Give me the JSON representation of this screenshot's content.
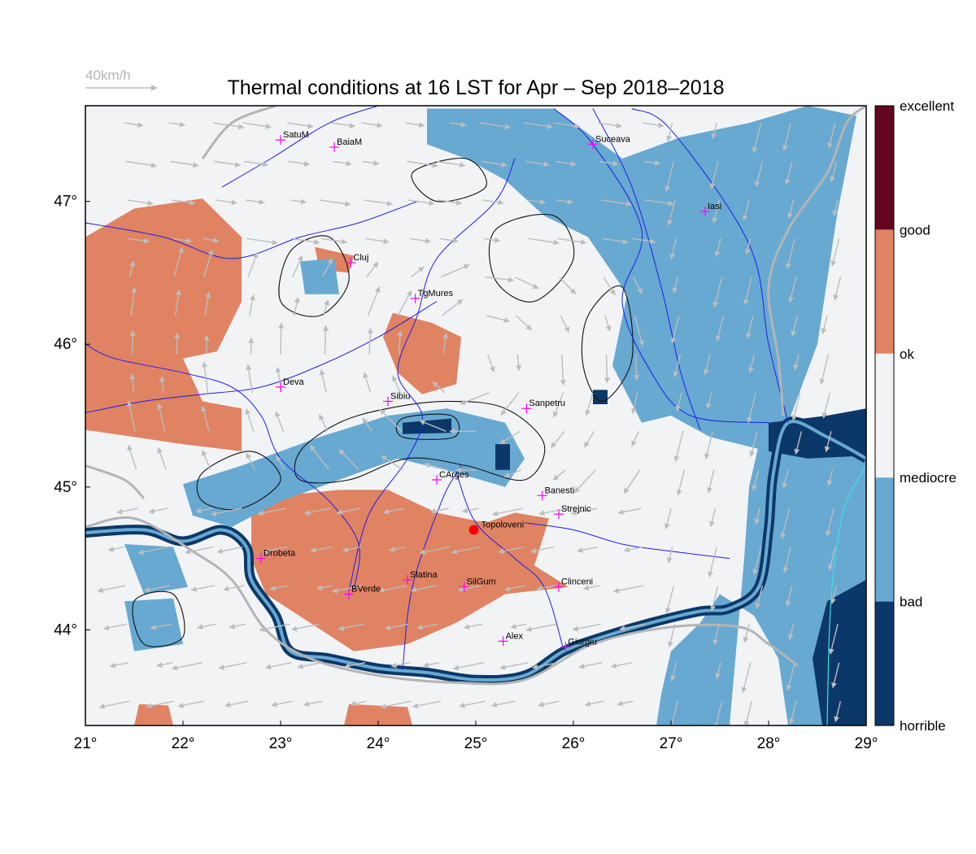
{
  "title": "Thermal conditions at 16 LST for Apr – Sep  2018–2018",
  "wind_scale": {
    "label": "40km/h",
    "speed_kmh": 40
  },
  "colors": {
    "background": "#f2f3f5",
    "horrible": "#0b3868",
    "bad": "#67a9d1",
    "mediocre": "#f2f3f5",
    "ok": "#f2f3f5",
    "good": "#e08363",
    "excellent": "#650621",
    "river": "#1e1ee6",
    "coast": "#40e0e0",
    "border": "#b4b4b4",
    "wind": "#bdbdbd",
    "marker": "#ff00ff",
    "highlight": "#ff0000"
  },
  "axes": {
    "lon": [
      21,
      29
    ],
    "lat": [
      43.33,
      47.67
    ],
    "x_ticks": [
      "21°",
      "22°",
      "23°",
      "24°",
      "25°",
      "26°",
      "27°",
      "28°",
      "29°"
    ],
    "y_ticks": [
      {
        "value": 44,
        "label": "44°"
      },
      {
        "value": 45,
        "label": "45°"
      },
      {
        "value": 46,
        "label": "46°"
      },
      {
        "value": 47,
        "label": "47°"
      }
    ]
  },
  "legend": {
    "labels": [
      "excellent",
      "good",
      "ok",
      "mediocre",
      "bad",
      "horrible"
    ],
    "bands": [
      {
        "from": 4,
        "to": 5,
        "color": "#650621"
      },
      {
        "from": 3,
        "to": 4,
        "color": "#e08363"
      },
      {
        "from": 2,
        "to": 3,
        "color": "#f2f3f5"
      },
      {
        "from": 1,
        "to": 2,
        "color": "#67a9d1"
      },
      {
        "from": 0,
        "to": 1,
        "color": "#0b3868"
      }
    ]
  },
  "cities": [
    {
      "name": "SatuM",
      "lon": 23.0,
      "lat": 47.43
    },
    {
      "name": "BaiaM",
      "lon": 23.55,
      "lat": 47.38
    },
    {
      "name": "Suceava",
      "lon": 26.2,
      "lat": 47.4
    },
    {
      "name": "Iasi",
      "lon": 27.35,
      "lat": 46.93
    },
    {
      "name": "Cluj",
      "lon": 23.72,
      "lat": 46.57
    },
    {
      "name": "TgMures",
      "lon": 24.38,
      "lat": 46.32
    },
    {
      "name": "Deva",
      "lon": 23.0,
      "lat": 45.7
    },
    {
      "name": "Sibiu",
      "lon": 24.1,
      "lat": 45.6
    },
    {
      "name": "Sanpetru",
      "lon": 25.52,
      "lat": 45.55
    },
    {
      "name": "CArges",
      "lon": 24.6,
      "lat": 45.05
    },
    {
      "name": "Banesti",
      "lon": 25.68,
      "lat": 44.94
    },
    {
      "name": "Strejnic",
      "lon": 25.85,
      "lat": 44.81
    },
    {
      "name": "Drobeta",
      "lon": 22.8,
      "lat": 44.5
    },
    {
      "name": "Slatina",
      "lon": 24.3,
      "lat": 44.35
    },
    {
      "name": "SilGum",
      "lon": 24.88,
      "lat": 44.3
    },
    {
      "name": "Clinceni",
      "lon": 25.85,
      "lat": 44.3
    },
    {
      "name": "BVerde",
      "lon": 23.7,
      "lat": 44.25
    },
    {
      "name": "Alex",
      "lon": 25.28,
      "lat": 43.92
    },
    {
      "name": "Giurgiu",
      "lon": 25.92,
      "lat": 43.88
    }
  ],
  "highlight": {
    "name": "Topoloveni",
    "lon": 24.98,
    "lat": 44.7
  },
  "regions": [
    {
      "cls": "good",
      "pts": [
        [
          21.0,
          46.75
        ],
        [
          21.5,
          46.95
        ],
        [
          22.2,
          47.02
        ],
        [
          22.6,
          46.75
        ],
        [
          22.6,
          46.3
        ],
        [
          22.35,
          45.95
        ],
        [
          22.0,
          45.9
        ],
        [
          22.2,
          45.6
        ],
        [
          22.6,
          45.55
        ],
        [
          22.6,
          45.25
        ],
        [
          22.0,
          45.3
        ],
        [
          21.5,
          45.35
        ],
        [
          21.0,
          45.4
        ]
      ]
    },
    {
      "cls": "good",
      "pts": [
        [
          23.35,
          46.68
        ],
        [
          23.75,
          46.62
        ],
        [
          23.7,
          46.5
        ],
        [
          23.4,
          46.52
        ]
      ]
    },
    {
      "cls": "good",
      "pts": [
        [
          24.15,
          46.22
        ],
        [
          24.55,
          46.15
        ],
        [
          24.85,
          46.05
        ],
        [
          24.8,
          45.72
        ],
        [
          24.45,
          45.65
        ],
        [
          24.2,
          45.8
        ],
        [
          24.05,
          46.05
        ]
      ]
    },
    {
      "cls": "good",
      "pts": [
        [
          22.7,
          44.85
        ],
        [
          23.15,
          44.95
        ],
        [
          23.6,
          44.98
        ],
        [
          24.1,
          44.98
        ],
        [
          24.6,
          44.82
        ],
        [
          25.1,
          44.75
        ],
        [
          25.4,
          44.82
        ],
        [
          25.75,
          44.78
        ],
        [
          25.6,
          44.45
        ],
        [
          25.95,
          44.3
        ],
        [
          25.3,
          44.25
        ],
        [
          24.8,
          44.05
        ],
        [
          24.3,
          43.9
        ],
        [
          23.75,
          43.85
        ],
        [
          23.3,
          44.05
        ],
        [
          22.85,
          44.25
        ],
        [
          22.7,
          44.5
        ]
      ]
    },
    {
      "cls": "good",
      "pts": [
        [
          21.55,
          43.48
        ],
        [
          21.85,
          43.47
        ],
        [
          21.9,
          43.33
        ],
        [
          21.5,
          43.33
        ]
      ]
    },
    {
      "cls": "good",
      "pts": [
        [
          23.7,
          43.48
        ],
        [
          24.3,
          43.46
        ],
        [
          24.35,
          43.33
        ],
        [
          23.65,
          43.33
        ]
      ]
    },
    {
      "cls": "good",
      "pts": [
        [
          27.98,
          44.75
        ],
        [
          28.1,
          44.72
        ],
        [
          28.08,
          44.6
        ],
        [
          27.95,
          44.62
        ]
      ]
    },
    {
      "cls": "bad",
      "pts": [
        [
          24.5,
          47.65
        ],
        [
          25.8,
          47.65
        ],
        [
          26.5,
          47.3
        ],
        [
          27.1,
          47.45
        ],
        [
          27.8,
          47.55
        ],
        [
          28.4,
          47.67
        ],
        [
          28.9,
          47.6
        ],
        [
          28.7,
          46.9
        ],
        [
          28.5,
          46.0
        ],
        [
          28.2,
          45.45
        ],
        [
          28.0,
          45.25
        ],
        [
          27.4,
          45.35
        ],
        [
          27.0,
          45.5
        ],
        [
          26.7,
          45.45
        ],
        [
          26.4,
          45.85
        ],
        [
          26.55,
          46.35
        ],
        [
          26.15,
          46.75
        ],
        [
          25.7,
          46.9
        ],
        [
          25.3,
          47.15
        ],
        [
          24.9,
          47.3
        ],
        [
          24.5,
          47.4
        ]
      ]
    },
    {
      "cls": "bad",
      "pts": [
        [
          22.0,
          45.02
        ],
        [
          22.6,
          45.15
        ],
        [
          23.4,
          45.35
        ],
        [
          24.1,
          45.5
        ],
        [
          24.7,
          45.55
        ],
        [
          25.3,
          45.45
        ],
        [
          25.5,
          45.2
        ],
        [
          25.3,
          45.0
        ],
        [
          24.8,
          45.1
        ],
        [
          24.2,
          45.2
        ],
        [
          23.6,
          45.05
        ],
        [
          23.0,
          44.9
        ],
        [
          22.5,
          44.72
        ],
        [
          22.1,
          44.8
        ]
      ]
    },
    {
      "cls": "bad",
      "pts": [
        [
          27.9,
          45.3
        ],
        [
          28.5,
          45.4
        ],
        [
          29.0,
          45.5
        ],
        [
          29.0,
          43.33
        ],
        [
          28.2,
          43.33
        ],
        [
          28.1,
          43.8
        ],
        [
          27.85,
          44.1
        ],
        [
          27.5,
          44.25
        ],
        [
          27.3,
          44.05
        ],
        [
          27.0,
          43.85
        ],
        [
          26.9,
          43.55
        ],
        [
          26.85,
          43.33
        ],
        [
          27.6,
          43.33
        ],
        [
          27.75,
          44.5
        ],
        [
          27.8,
          45.0
        ]
      ]
    },
    {
      "cls": "bad",
      "pts": [
        [
          21.4,
          44.6
        ],
        [
          21.9,
          44.58
        ],
        [
          22.05,
          44.3
        ],
        [
          21.6,
          44.25
        ]
      ]
    },
    {
      "cls": "bad",
      "pts": [
        [
          21.4,
          44.2
        ],
        [
          21.9,
          44.22
        ],
        [
          22.0,
          43.9
        ],
        [
          21.5,
          43.85
        ]
      ]
    },
    {
      "cls": "bad",
      "pts": [
        [
          23.2,
          46.58
        ],
        [
          23.55,
          46.6
        ],
        [
          23.6,
          46.35
        ],
        [
          23.25,
          46.35
        ]
      ]
    },
    {
      "cls": "horrible",
      "pts": [
        [
          28.55,
          43.33
        ],
        [
          29.0,
          43.33
        ],
        [
          29.0,
          44.35
        ],
        [
          28.6,
          44.2
        ],
        [
          28.45,
          43.8
        ]
      ]
    },
    {
      "cls": "horrible",
      "pts": [
        [
          28.0,
          45.45
        ],
        [
          28.6,
          45.5
        ],
        [
          29.0,
          45.55
        ],
        [
          29.0,
          45.22
        ],
        [
          28.4,
          45.2
        ],
        [
          28.0,
          45.25
        ]
      ]
    },
    {
      "cls": "horrible",
      "pts": [
        [
          24.25,
          45.45
        ],
        [
          24.75,
          45.48
        ],
        [
          24.75,
          45.38
        ],
        [
          24.25,
          45.37
        ]
      ]
    },
    {
      "cls": "horrible",
      "pts": [
        [
          25.2,
          45.3
        ],
        [
          25.35,
          45.3
        ],
        [
          25.35,
          45.12
        ],
        [
          25.2,
          45.12
        ]
      ]
    },
    {
      "cls": "horrible",
      "pts": [
        [
          26.2,
          45.68
        ],
        [
          26.35,
          45.68
        ],
        [
          26.35,
          45.58
        ],
        [
          26.2,
          45.58
        ]
      ]
    }
  ],
  "danube": [
    [
      21.0,
      44.68
    ],
    [
      21.6,
      44.7
    ],
    [
      22.0,
      44.62
    ],
    [
      22.4,
      44.7
    ],
    [
      22.65,
      44.58
    ],
    [
      22.7,
      44.35
    ],
    [
      22.95,
      44.1
    ],
    [
      23.1,
      43.85
    ],
    [
      23.5,
      43.8
    ],
    [
      24.0,
      43.73
    ],
    [
      24.5,
      43.7
    ],
    [
      25.0,
      43.65
    ],
    [
      25.5,
      43.68
    ],
    [
      25.9,
      43.85
    ],
    [
      26.3,
      43.95
    ],
    [
      26.8,
      44.05
    ],
    [
      27.3,
      44.13
    ],
    [
      27.6,
      44.15
    ],
    [
      27.9,
      44.3
    ],
    [
      28.0,
      44.7
    ],
    [
      28.05,
      45.1
    ],
    [
      28.2,
      45.45
    ],
    [
      28.6,
      45.35
    ],
    [
      29.0,
      45.2
    ]
  ],
  "rivers": [
    [
      [
        23.75,
        44.28
      ],
      [
        23.8,
        44.6
      ],
      [
        23.5,
        44.9
      ],
      [
        23.0,
        45.2
      ],
      [
        22.8,
        45.5
      ],
      [
        22.5,
        45.7
      ],
      [
        22.0,
        45.8
      ],
      [
        21.3,
        45.9
      ],
      [
        21.0,
        46.0
      ]
    ],
    [
      [
        23.7,
        44.27
      ],
      [
        23.9,
        44.8
      ],
      [
        24.3,
        45.2
      ],
      [
        24.45,
        45.5
      ],
      [
        24.2,
        45.8
      ],
      [
        24.4,
        46.2
      ],
      [
        24.6,
        46.6
      ],
      [
        25.2,
        47.0
      ],
      [
        25.4,
        47.3
      ]
    ],
    [
      [
        24.25,
        43.72
      ],
      [
        24.35,
        44.3
      ],
      [
        24.65,
        44.9
      ],
      [
        24.85,
        45.15
      ]
    ],
    [
      [
        25.9,
        43.86
      ],
      [
        25.7,
        44.3
      ],
      [
        25.4,
        44.5
      ],
      [
        25.0,
        44.75
      ],
      [
        24.8,
        45.1
      ]
    ],
    [
      [
        27.6,
        44.5
      ],
      [
        27.0,
        44.55
      ],
      [
        26.5,
        44.6
      ],
      [
        26.0,
        44.7
      ],
      [
        25.5,
        44.75
      ]
    ],
    [
      [
        28.0,
        45.45
      ],
      [
        27.2,
        45.5
      ],
      [
        26.8,
        45.8
      ],
      [
        26.5,
        46.3
      ],
      [
        26.7,
        46.8
      ],
      [
        26.2,
        47.4
      ],
      [
        25.8,
        47.65
      ]
    ],
    [
      [
        28.2,
        45.45
      ],
      [
        28.0,
        46.0
      ],
      [
        27.8,
        46.7
      ],
      [
        27.0,
        47.5
      ],
      [
        26.6,
        47.65
      ]
    ],
    [
      [
        22.4,
        47.1
      ],
      [
        22.9,
        47.3
      ],
      [
        23.5,
        47.55
      ],
      [
        24.0,
        47.67
      ]
    ],
    [
      [
        21.0,
        46.85
      ],
      [
        21.8,
        46.75
      ],
      [
        22.5,
        46.6
      ],
      [
        23.2,
        46.75
      ],
      [
        23.8,
        46.85
      ],
      [
        24.4,
        47.0
      ]
    ],
    [
      [
        21.0,
        45.52
      ],
      [
        21.6,
        45.6
      ],
      [
        22.2,
        45.65
      ],
      [
        22.8,
        45.7
      ],
      [
        23.4,
        45.85
      ],
      [
        24.0,
        46.05
      ],
      [
        24.6,
        46.3
      ]
    ],
    [
      [
        26.2,
        47.65
      ],
      [
        26.6,
        47.1
      ],
      [
        26.9,
        46.4
      ],
      [
        27.1,
        45.8
      ],
      [
        27.3,
        45.4
      ]
    ]
  ],
  "coast": [
    [
      29.0,
      45.15
    ],
    [
      28.8,
      44.9
    ],
    [
      28.7,
      44.6
    ],
    [
      28.65,
      44.3
    ],
    [
      28.62,
      43.95
    ],
    [
      28.6,
      43.33
    ]
  ],
  "borders": [
    [
      [
        21.0,
        44.72
      ],
      [
        21.5,
        44.78
      ],
      [
        22.1,
        44.55
      ],
      [
        22.5,
        44.35
      ],
      [
        22.85,
        44.0
      ],
      [
        23.3,
        43.8
      ],
      [
        24.0,
        43.68
      ],
      [
        24.8,
        43.63
      ],
      [
        25.5,
        43.65
      ],
      [
        26.2,
        43.9
      ],
      [
        27.0,
        44.02
      ],
      [
        27.7,
        44.02
      ],
      [
        28.0,
        43.9
      ],
      [
        28.3,
        43.75
      ]
    ],
    [
      [
        28.15,
        45.5
      ],
      [
        28.1,
        45.9
      ],
      [
        28.0,
        46.4
      ],
      [
        28.2,
        46.8
      ],
      [
        28.6,
        47.2
      ],
      [
        28.8,
        47.55
      ],
      [
        29.0,
        47.67
      ]
    ],
    [
      [
        21.0,
        45.15
      ],
      [
        21.4,
        45.05
      ],
      [
        21.6,
        44.92
      ]
    ],
    [
      [
        22.2,
        47.3
      ],
      [
        22.5,
        47.55
      ],
      [
        22.95,
        47.67
      ]
    ]
  ],
  "contours": [
    [
      [
        23.2,
        45.25
      ],
      [
        23.6,
        45.45
      ],
      [
        24.1,
        45.55
      ],
      [
        24.7,
        45.6
      ],
      [
        25.3,
        45.55
      ],
      [
        25.7,
        45.3
      ],
      [
        25.5,
        45.05
      ],
      [
        24.9,
        45.15
      ],
      [
        24.3,
        45.2
      ],
      [
        23.7,
        45.05
      ],
      [
        23.2,
        45.05
      ]
    ],
    [
      [
        22.2,
        45.1
      ],
      [
        22.7,
        45.25
      ],
      [
        23.0,
        45.05
      ],
      [
        22.6,
        44.85
      ],
      [
        22.2,
        44.9
      ]
    ],
    [
      [
        23.1,
        46.65
      ],
      [
        23.5,
        46.75
      ],
      [
        23.7,
        46.45
      ],
      [
        23.4,
        46.2
      ],
      [
        23.0,
        46.3
      ]
    ],
    [
      [
        25.2,
        46.8
      ],
      [
        25.8,
        46.9
      ],
      [
        26.0,
        46.6
      ],
      [
        25.6,
        46.3
      ],
      [
        25.2,
        46.45
      ]
    ],
    [
      [
        26.15,
        46.2
      ],
      [
        26.5,
        46.4
      ],
      [
        26.6,
        45.9
      ],
      [
        26.3,
        45.6
      ],
      [
        26.1,
        45.85
      ]
    ],
    [
      [
        21.5,
        44.2
      ],
      [
        21.9,
        44.25
      ],
      [
        22.0,
        43.95
      ],
      [
        21.6,
        43.9
      ]
    ],
    [
      [
        24.25,
        45.48
      ],
      [
        24.75,
        45.5
      ],
      [
        24.78,
        45.35
      ],
      [
        24.25,
        45.35
      ]
    ],
    [
      [
        24.35,
        47.2
      ],
      [
        24.9,
        47.3
      ],
      [
        25.1,
        47.1
      ],
      [
        24.6,
        47.0
      ]
    ]
  ],
  "grid": {
    "lon_min": 21.4,
    "lon_max": 28.8,
    "lon_step": 0.4,
    "lat_min": 43.5,
    "lat_max": 47.55,
    "lat_step": 0.27
  }
}
